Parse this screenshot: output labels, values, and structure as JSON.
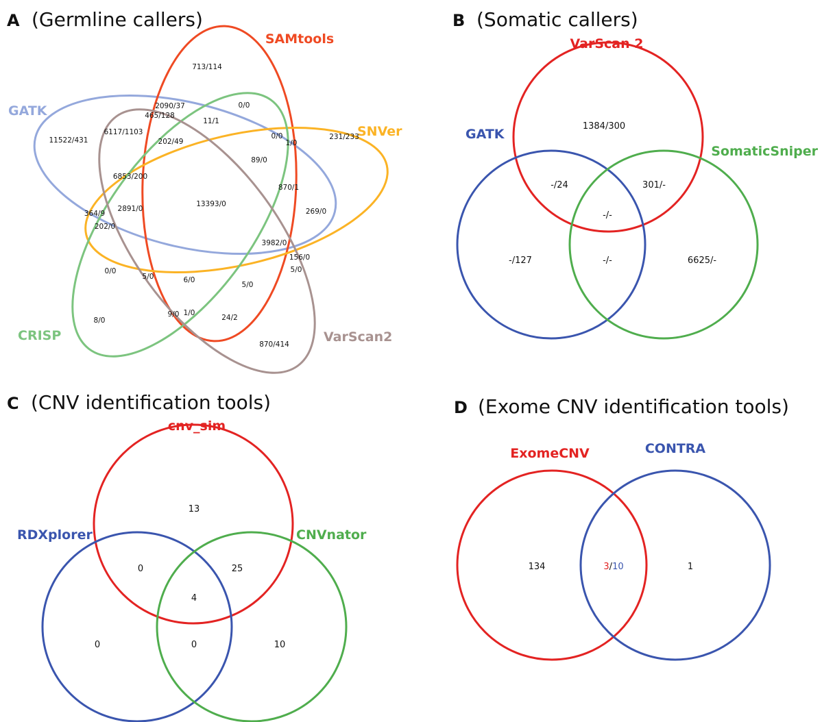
{
  "colors": {
    "germline": {
      "gatk": "#94a8dc",
      "samtools": "#ef4a23",
      "snver": "#fbb325",
      "crisp": "#7cc47f",
      "varscan2": "#a89290"
    },
    "red": "#e32322",
    "blue": "#3a55ae",
    "green": "#4fad4d"
  },
  "panels": {
    "a": {
      "letter": "A",
      "title": "(Germline callers)",
      "sets": {
        "samtools": "SAMtools",
        "gatk": "GATK",
        "snver": "SNVer",
        "crisp": "CRISP",
        "varscan2": "VarScan2"
      },
      "regions": [
        "713/114",
        "0/0",
        "2090/37",
        "465/128",
        "11/1",
        "11522/431",
        "6117/1103",
        "202/49",
        "0/0",
        "1/0",
        "231/233",
        "89/0",
        "6853/200",
        "870/1",
        "364/9",
        "2891/0",
        "13393/0",
        "269/0",
        "202/0",
        "3982/0",
        "156/0",
        "0/0",
        "5/0",
        "5/0",
        "6/0",
        "5/0",
        "8/0",
        "9/0",
        "1/0",
        "24/2",
        "870/414"
      ]
    },
    "b": {
      "letter": "B",
      "title": "(Somatic callers)",
      "sets": {
        "varscan": "VarScan 2",
        "gatk": "GATK",
        "somaticsniper": "SomaticSniper"
      },
      "regions": {
        "varscan_only": "1384/300",
        "varscan_gatk": "-/24",
        "varscan_sniper": "301/-",
        "all_three": "-/-",
        "gatk_only": "-/127",
        "gatk_sniper": "-/-",
        "sniper_only": "6625/-"
      }
    },
    "c": {
      "letter": "C",
      "title": "(CNV identification tools)",
      "sets": {
        "cnv_sim": "cnv_sim",
        "rdxplorer": "RDXplorer",
        "cnvnator": "CNVnator"
      },
      "regions": {
        "sim_only": "13",
        "sim_rdx": "0",
        "sim_cnvnator": "25",
        "all_three": "4",
        "rdx_only": "0",
        "rdx_cnvnator": "0",
        "cnvnator_only": "10"
      }
    },
    "d": {
      "letter": "D",
      "title": "(Exome CNV identification tools)",
      "sets": {
        "exomecnv": "ExomeCNV",
        "contra": "CONTRA"
      },
      "regions": {
        "exomecnv_only": "134",
        "overlap_exomecnv": "3",
        "overlap_separator": "/",
        "overlap_contra": "10",
        "contra_only": "1"
      }
    }
  }
}
